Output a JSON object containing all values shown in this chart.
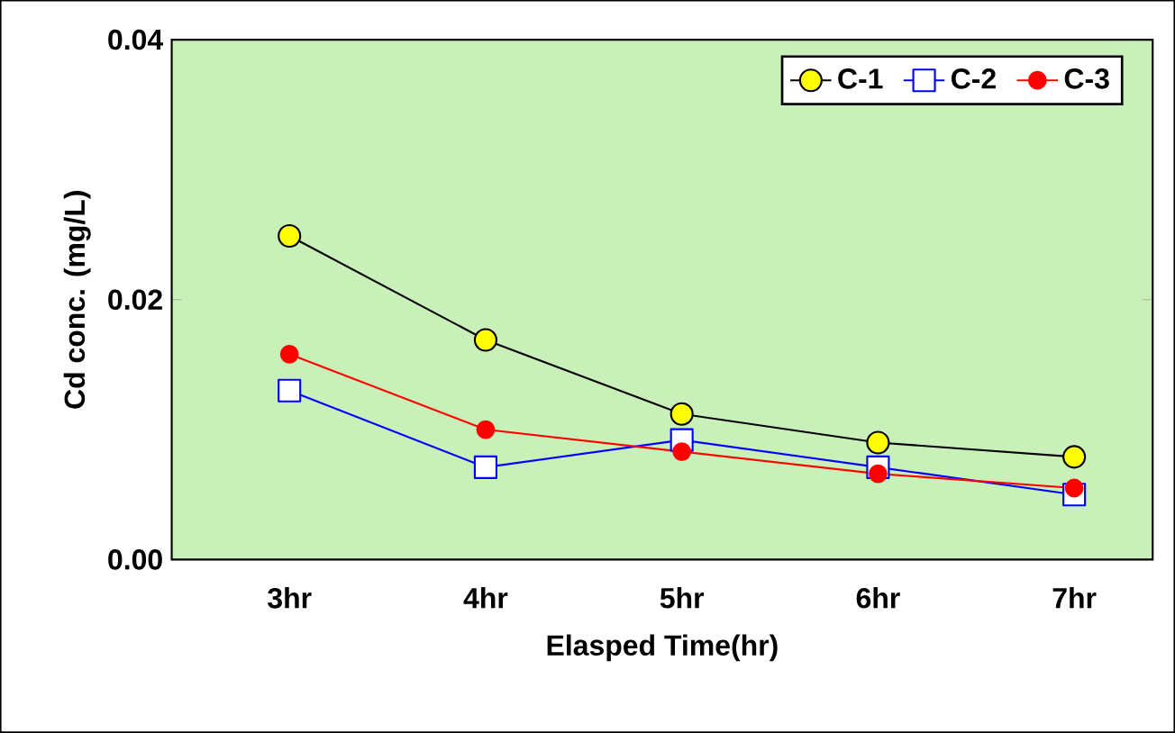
{
  "chart_data": {
    "type": "line",
    "xlabel": "Elasped Time(hr)",
    "ylabel": "Cd conc. (mg/L)",
    "categories": [
      "3hr",
      "4hr",
      "5hr",
      "6hr",
      "7hr"
    ],
    "ylim": [
      0,
      0.04
    ],
    "yticks": [
      {
        "value": 0,
        "label": "0.00"
      },
      {
        "value": 0.02,
        "label": "0.02"
      },
      {
        "value": 0.04,
        "label": "0.04"
      }
    ],
    "legend": "top right",
    "grid": false,
    "series": [
      {
        "name": "C-1",
        "color": "#ffff00",
        "marker": "circle",
        "values": [
          0.0249,
          0.0169,
          0.0112,
          0.009,
          0.0079
        ]
      },
      {
        "name": "C-2",
        "color": "#0000ff",
        "marker": "square",
        "values": [
          0.013,
          0.0071,
          0.0092,
          0.0071,
          0.005
        ]
      },
      {
        "name": "C-3",
        "color": "#ff0000",
        "marker": "circle",
        "values": [
          0.0158,
          0.01,
          0.0083,
          0.0066,
          0.0055
        ]
      }
    ]
  }
}
